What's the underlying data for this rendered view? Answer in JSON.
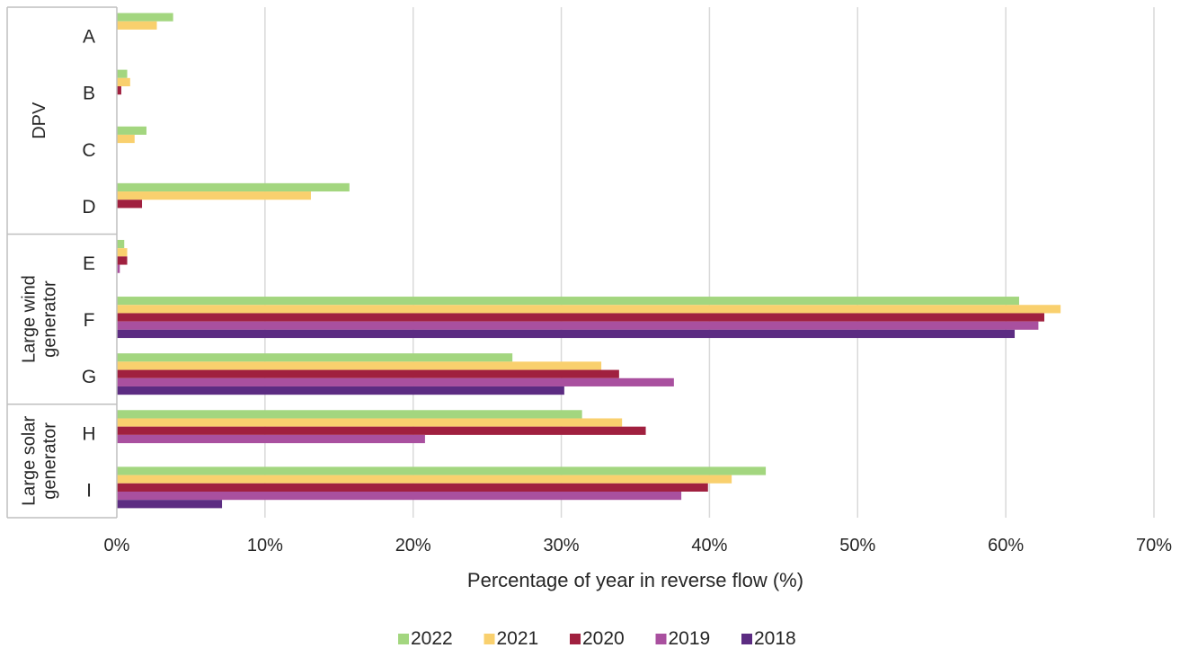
{
  "chart_data": {
    "type": "bar",
    "orientation": "horizontal",
    "title": "",
    "xlabel": "Percentage of year in reverse flow (%)",
    "ylabel": "",
    "xlim": [
      0,
      70
    ],
    "x_ticks": [
      "0%",
      "10%",
      "20%",
      "30%",
      "40%",
      "50%",
      "60%",
      "70%"
    ],
    "grid": "vertical",
    "legend_position": "bottom",
    "categories": [
      "A",
      "B",
      "C",
      "D",
      "E",
      "F",
      "G",
      "H",
      "I"
    ],
    "groups": [
      {
        "label": "DPV",
        "categories": [
          "A",
          "B",
          "C",
          "D"
        ]
      },
      {
        "label": "Large wind generator",
        "categories": [
          "E",
          "F",
          "G"
        ]
      },
      {
        "label": "Large solar generator",
        "categories": [
          "H",
          "I"
        ]
      }
    ],
    "series": [
      {
        "name": "2022",
        "color": "#a3d67f",
        "values": [
          3.8,
          0.7,
          2.0,
          15.7,
          0.5,
          60.9,
          26.7,
          31.4,
          43.8
        ]
      },
      {
        "name": "2021",
        "color": "#f9d06e",
        "values": [
          2.7,
          0.9,
          1.2,
          13.1,
          0.7,
          63.7,
          32.7,
          34.1,
          41.5
        ]
      },
      {
        "name": "2020",
        "color": "#a0203f",
        "values": [
          0,
          0.3,
          0,
          1.7,
          0.7,
          62.6,
          33.9,
          35.7,
          39.9
        ]
      },
      {
        "name": "2019",
        "color": "#a9509f",
        "values": [
          0,
          0,
          0,
          0,
          0.2,
          62.2,
          37.6,
          20.8,
          38.1
        ]
      },
      {
        "name": "2018",
        "color": "#5c2c82",
        "values": [
          0,
          0,
          0,
          0,
          0,
          60.6,
          30.2,
          0,
          7.1
        ]
      }
    ]
  }
}
